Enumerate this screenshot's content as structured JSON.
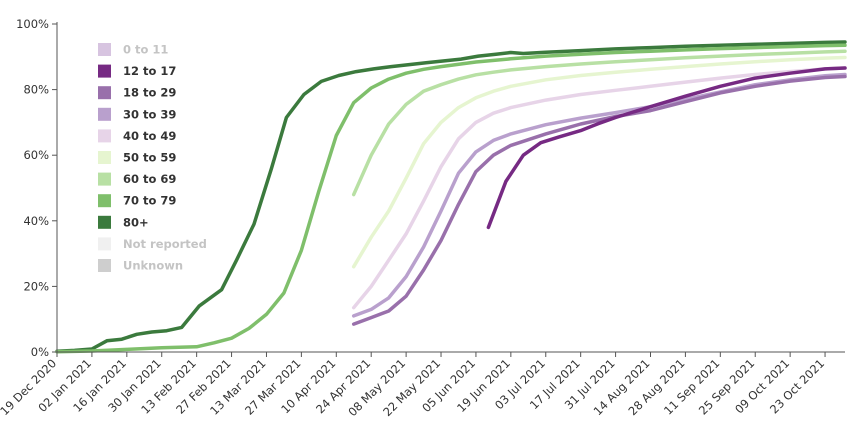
{
  "chart_data": {
    "type": "line",
    "title": "",
    "xlabel": "",
    "ylabel": "",
    "ylim": [
      0,
      100
    ],
    "y_ticks": [
      "0%",
      "20%",
      "40%",
      "60%",
      "80%",
      "100%"
    ],
    "y_tick_values": [
      0,
      20,
      40,
      60,
      80,
      100
    ],
    "x_range": [
      "2020-12-19",
      "2021-10-31"
    ],
    "x_ticks": [
      "19 Dec 2020",
      "02 Jan 2021",
      "16 Jan 2021",
      "30 Jan 2021",
      "13 Feb 2021",
      "27 Feb 2021",
      "13 Mar 2021",
      "27 Mar 2021",
      "10 Apr 2021",
      "24 Apr 2021",
      "08 May 2021",
      "22 May 2021",
      "05 Jun 2021",
      "19 Jun 2021",
      "03 Jul 2021",
      "17 Jul 2021",
      "31 Jul 2021",
      "14 Aug 2021",
      "28 Aug 2021",
      "11 Sep 2021",
      "25 Sep 2021",
      "09 Oct 2021",
      "23 Oct 2021"
    ],
    "x_tick_dates": [
      "2020-12-19",
      "2021-01-02",
      "2021-01-16",
      "2021-01-30",
      "2021-02-13",
      "2021-02-27",
      "2021-03-13",
      "2021-03-27",
      "2021-04-10",
      "2021-04-24",
      "2021-05-08",
      "2021-05-22",
      "2021-06-05",
      "2021-06-19",
      "2021-07-03",
      "2021-07-17",
      "2021-07-31",
      "2021-08-14",
      "2021-08-28",
      "2021-09-11",
      "2021-09-25",
      "2021-10-09",
      "2021-10-23"
    ],
    "grid": false,
    "legend_position": "top-left",
    "legend": [
      {
        "name": "0 to 11",
        "color": "#c2a5cf",
        "dimmed": true
      },
      {
        "name": "12 to 17",
        "color": "#762a83",
        "dimmed": false
      },
      {
        "name": "18 to 29",
        "color": "#9970ab",
        "dimmed": false
      },
      {
        "name": "30 to 39",
        "color": "#b9a0cd",
        "dimmed": false
      },
      {
        "name": "40 to 49",
        "color": "#e7d4e8",
        "dimmed": false
      },
      {
        "name": "50 to 59",
        "color": "#e6f5d0",
        "dimmed": false
      },
      {
        "name": "60 to 69",
        "color": "#b8e0a4",
        "dimmed": false
      },
      {
        "name": "70 to 79",
        "color": "#7fbf6b",
        "dimmed": false
      },
      {
        "name": "80+",
        "color": "#3b7a3d",
        "dimmed": false
      },
      {
        "name": "Not reported",
        "color": "#e8e8e8",
        "dimmed": true
      },
      {
        "name": "Unknown",
        "color": "#b3b3b3",
        "dimmed": true
      }
    ],
    "series": [
      {
        "name": "80+",
        "color": "#3b7a3d",
        "points": [
          [
            "2020-12-19",
            0.2
          ],
          [
            "2020-12-26",
            0.5
          ],
          [
            "2021-01-02",
            0.9
          ],
          [
            "2021-01-08",
            3.4
          ],
          [
            "2021-01-14",
            3.9
          ],
          [
            "2021-01-20",
            5.4
          ],
          [
            "2021-01-26",
            6.1
          ],
          [
            "2021-02-01",
            6.5
          ],
          [
            "2021-02-07",
            7.5
          ],
          [
            "2021-02-14",
            14.0
          ],
          [
            "2021-02-23",
            19.0
          ],
          [
            "2021-03-01",
            28.0
          ],
          [
            "2021-03-08",
            39.0
          ],
          [
            "2021-03-15",
            56.0
          ],
          [
            "2021-03-21",
            71.5
          ],
          [
            "2021-03-28",
            78.5
          ],
          [
            "2021-04-04",
            82.5
          ],
          [
            "2021-04-11",
            84.3
          ],
          [
            "2021-04-18",
            85.5
          ],
          [
            "2021-04-25",
            86.3
          ],
          [
            "2021-05-02",
            87.0
          ],
          [
            "2021-05-16",
            88.2
          ],
          [
            "2021-05-30",
            89.3
          ],
          [
            "2021-06-06",
            90.2
          ],
          [
            "2021-06-13",
            90.8
          ],
          [
            "2021-06-19",
            91.3
          ],
          [
            "2021-06-24",
            91.0
          ],
          [
            "2021-07-03",
            91.4
          ],
          [
            "2021-07-17",
            91.9
          ],
          [
            "2021-07-31",
            92.4
          ],
          [
            "2021-08-14",
            92.8
          ],
          [
            "2021-08-28",
            93.2
          ],
          [
            "2021-09-11",
            93.5
          ],
          [
            "2021-09-25",
            93.8
          ],
          [
            "2021-10-09",
            94.1
          ],
          [
            "2021-10-23",
            94.4
          ],
          [
            "2021-10-31",
            94.5
          ]
        ]
      },
      {
        "name": "70 to 79",
        "color": "#7fbf6b",
        "points": [
          [
            "2020-12-19",
            0.1
          ],
          [
            "2021-01-02",
            0.3
          ],
          [
            "2021-01-16",
            0.8
          ],
          [
            "2021-01-30",
            1.3
          ],
          [
            "2021-02-13",
            1.6
          ],
          [
            "2021-02-20",
            2.8
          ],
          [
            "2021-02-27",
            4.2
          ],
          [
            "2021-03-06",
            7.2
          ],
          [
            "2021-03-13",
            11.5
          ],
          [
            "2021-03-20",
            18.0
          ],
          [
            "2021-03-27",
            31.0
          ],
          [
            "2021-04-03",
            49.0
          ],
          [
            "2021-04-10",
            66.0
          ],
          [
            "2021-04-17",
            76.0
          ],
          [
            "2021-04-24",
            80.5
          ],
          [
            "2021-05-01",
            83.2
          ],
          [
            "2021-05-08",
            85.0
          ],
          [
            "2021-05-15",
            86.2
          ],
          [
            "2021-05-22",
            87.0
          ],
          [
            "2021-06-05",
            88.4
          ],
          [
            "2021-06-19",
            89.4
          ],
          [
            "2021-07-03",
            90.2
          ],
          [
            "2021-07-17",
            90.8
          ],
          [
            "2021-07-31",
            91.3
          ],
          [
            "2021-08-14",
            91.7
          ],
          [
            "2021-08-28",
            92.1
          ],
          [
            "2021-09-11",
            92.5
          ],
          [
            "2021-09-25",
            92.8
          ],
          [
            "2021-10-09",
            93.1
          ],
          [
            "2021-10-23",
            93.4
          ],
          [
            "2021-10-31",
            93.5
          ]
        ]
      },
      {
        "name": "60 to 69",
        "color": "#b8e0a4",
        "points": [
          [
            "2021-04-17",
            48.0
          ],
          [
            "2021-04-24",
            60.0
          ],
          [
            "2021-05-01",
            69.5
          ],
          [
            "2021-05-08",
            75.5
          ],
          [
            "2021-05-15",
            79.5
          ],
          [
            "2021-05-22",
            81.5
          ],
          [
            "2021-05-29",
            83.2
          ],
          [
            "2021-06-05",
            84.5
          ],
          [
            "2021-06-12",
            85.3
          ],
          [
            "2021-06-19",
            86.0
          ],
          [
            "2021-07-03",
            87.0
          ],
          [
            "2021-07-17",
            87.8
          ],
          [
            "2021-07-31",
            88.5
          ],
          [
            "2021-08-14",
            89.1
          ],
          [
            "2021-08-28",
            89.7
          ],
          [
            "2021-09-11",
            90.2
          ],
          [
            "2021-09-25",
            90.7
          ],
          [
            "2021-10-09",
            91.1
          ],
          [
            "2021-10-23",
            91.5
          ],
          [
            "2021-10-31",
            91.7
          ]
        ]
      },
      {
        "name": "50 to 59",
        "color": "#e6f5d0",
        "points": [
          [
            "2021-04-17",
            26.0
          ],
          [
            "2021-04-24",
            35.0
          ],
          [
            "2021-05-01",
            43.0
          ],
          [
            "2021-05-08",
            53.0
          ],
          [
            "2021-05-15",
            63.5
          ],
          [
            "2021-05-22",
            70.0
          ],
          [
            "2021-05-29",
            74.5
          ],
          [
            "2021-06-05",
            77.5
          ],
          [
            "2021-06-12",
            79.5
          ],
          [
            "2021-06-19",
            81.0
          ],
          [
            "2021-07-03",
            83.0
          ],
          [
            "2021-07-17",
            84.3
          ],
          [
            "2021-07-31",
            85.3
          ],
          [
            "2021-08-14",
            86.2
          ],
          [
            "2021-08-28",
            87.0
          ],
          [
            "2021-09-11",
            87.8
          ],
          [
            "2021-09-25",
            88.5
          ],
          [
            "2021-10-09",
            89.1
          ],
          [
            "2021-10-23",
            89.6
          ],
          [
            "2021-10-31",
            89.8
          ]
        ]
      },
      {
        "name": "40 to 49",
        "color": "#e7d4e8",
        "points": [
          [
            "2021-04-17",
            13.5
          ],
          [
            "2021-04-24",
            20.0
          ],
          [
            "2021-05-01",
            28.0
          ],
          [
            "2021-05-08",
            36.0
          ],
          [
            "2021-05-15",
            46.0
          ],
          [
            "2021-05-22",
            56.5
          ],
          [
            "2021-05-29",
            65.0
          ],
          [
            "2021-06-05",
            70.0
          ],
          [
            "2021-06-12",
            72.8
          ],
          [
            "2021-06-19",
            74.5
          ],
          [
            "2021-07-03",
            76.8
          ],
          [
            "2021-07-17",
            78.5
          ],
          [
            "2021-07-31",
            79.8
          ],
          [
            "2021-08-14",
            81.0
          ],
          [
            "2021-08-28",
            82.3
          ],
          [
            "2021-09-11",
            83.5
          ],
          [
            "2021-09-25",
            84.6
          ],
          [
            "2021-10-09",
            85.5
          ],
          [
            "2021-10-23",
            86.3
          ],
          [
            "2021-10-31",
            86.6
          ]
        ]
      },
      {
        "name": "30 to 39",
        "color": "#b9a0cd",
        "points": [
          [
            "2021-04-17",
            11.0
          ],
          [
            "2021-04-24",
            13.0
          ],
          [
            "2021-05-01",
            16.5
          ],
          [
            "2021-05-08",
            23.0
          ],
          [
            "2021-05-15",
            32.0
          ],
          [
            "2021-05-22",
            43.0
          ],
          [
            "2021-05-29",
            54.5
          ],
          [
            "2021-06-05",
            61.0
          ],
          [
            "2021-06-12",
            64.5
          ],
          [
            "2021-06-19",
            66.5
          ],
          [
            "2021-07-03",
            69.3
          ],
          [
            "2021-07-17",
            71.3
          ],
          [
            "2021-07-31",
            73.0
          ],
          [
            "2021-08-14",
            74.8
          ],
          [
            "2021-08-28",
            77.0
          ],
          [
            "2021-09-11",
            79.3
          ],
          [
            "2021-09-25",
            81.5
          ],
          [
            "2021-10-09",
            83.0
          ],
          [
            "2021-10-23",
            84.2
          ],
          [
            "2021-10-31",
            84.6
          ]
        ]
      },
      {
        "name": "18 to 29",
        "color": "#9970ab",
        "points": [
          [
            "2021-04-17",
            8.5
          ],
          [
            "2021-04-24",
            10.5
          ],
          [
            "2021-05-01",
            12.5
          ],
          [
            "2021-05-08",
            17.0
          ],
          [
            "2021-05-15",
            25.0
          ],
          [
            "2021-05-22",
            34.0
          ],
          [
            "2021-05-29",
            45.0
          ],
          [
            "2021-06-05",
            55.0
          ],
          [
            "2021-06-12",
            60.0
          ],
          [
            "2021-06-19",
            63.0
          ],
          [
            "2021-07-03",
            66.5
          ],
          [
            "2021-07-17",
            69.5
          ],
          [
            "2021-07-31",
            71.8
          ],
          [
            "2021-08-14",
            73.6
          ],
          [
            "2021-08-28",
            76.3
          ],
          [
            "2021-09-11",
            79.0
          ],
          [
            "2021-09-25",
            81.0
          ],
          [
            "2021-10-09",
            82.6
          ],
          [
            "2021-10-23",
            83.7
          ],
          [
            "2021-10-31",
            84.0
          ]
        ]
      },
      {
        "name": "12 to 17",
        "color": "#762a83",
        "points": [
          [
            "2021-06-10",
            38.0
          ],
          [
            "2021-06-17",
            52.0
          ],
          [
            "2021-06-24",
            60.0
          ],
          [
            "2021-07-01",
            63.8
          ],
          [
            "2021-07-08",
            65.5
          ],
          [
            "2021-07-17",
            67.5
          ],
          [
            "2021-07-24",
            69.6
          ],
          [
            "2021-07-31",
            71.5
          ],
          [
            "2021-08-14",
            74.8
          ],
          [
            "2021-08-28",
            78.0
          ],
          [
            "2021-09-11",
            81.0
          ],
          [
            "2021-09-25",
            83.5
          ],
          [
            "2021-10-09",
            85.0
          ],
          [
            "2021-10-23",
            86.3
          ],
          [
            "2021-10-31",
            86.6
          ]
        ]
      }
    ]
  }
}
